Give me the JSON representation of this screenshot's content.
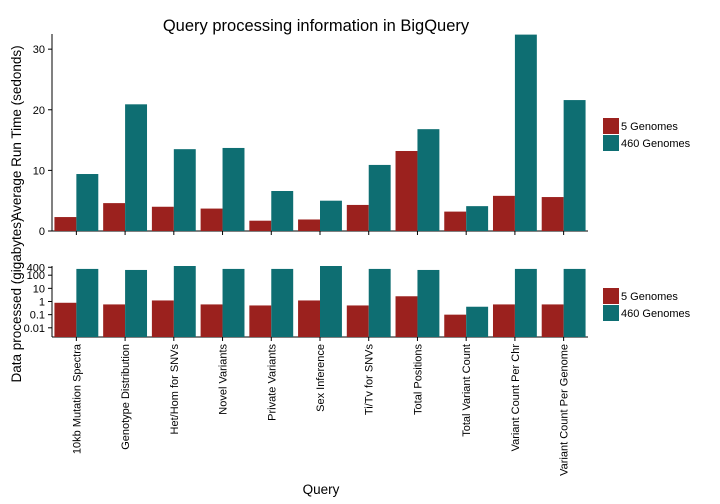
{
  "chart_data": [
    {
      "type": "bar",
      "title": "Query processing information in BigQuery",
      "xlabel": "Query",
      "ylabel": "Average Run Time (sedonds)",
      "ylim": [
        0,
        32.5
      ],
      "yticks": [
        0,
        10,
        20,
        30
      ],
      "scale": "linear",
      "grid": false,
      "legend_position": "right",
      "categories": [
        "10kb Mutation Spectra",
        "Genotype Distribution",
        "Het/Hom for SNVs",
        "Novel Variants",
        "Private Variants",
        "Sex Inference",
        "Ti/Tv for SNVs",
        "Total Positions",
        "Total Variant Count",
        "Variant Count Per Chr",
        "Variant Count Per Genome"
      ],
      "series": [
        {
          "name": "5 Genomes",
          "color": "#9b211e",
          "values": [
            2.3,
            4.6,
            4.0,
            3.7,
            1.7,
            1.9,
            4.3,
            13.2,
            3.2,
            5.8,
            5.6
          ]
        },
        {
          "name": "460 Genomes",
          "color": "#0e6e72",
          "values": [
            9.4,
            20.9,
            13.5,
            13.7,
            6.6,
            5.0,
            10.9,
            16.8,
            4.1,
            32.4,
            21.6
          ]
        }
      ]
    },
    {
      "type": "bar",
      "xlabel": "Query",
      "ylabel": "Data processed (gigabytes)",
      "scale": "log",
      "ylim": [
        0.002,
        500
      ],
      "yticks": [
        0.01,
        0.1,
        1,
        10,
        100,
        400
      ],
      "ytick_labels": [
        "0.01",
        "0.1",
        "1",
        "10",
        "100",
        "400"
      ],
      "grid": false,
      "legend_position": "right",
      "categories": [
        "10kb Mutation Spectra",
        "Genotype Distribution",
        "Het/Hom for SNVs",
        "Novel Variants",
        "Private Variants",
        "Sex Inference",
        "Ti/Tv for SNVs",
        "Total Positions",
        "Total Variant Count",
        "Variant Count Per Chr",
        "Variant Count Per Genome"
      ],
      "series": [
        {
          "name": "5 Genomes",
          "color": "#9b211e",
          "values": [
            0.8,
            0.6,
            1.2,
            0.6,
            0.5,
            1.2,
            0.5,
            2.5,
            0.1,
            0.6,
            0.6
          ]
        },
        {
          "name": "460 Genomes",
          "color": "#0e6e72",
          "values": [
            300,
            250,
            500,
            300,
            300,
            500,
            300,
            250,
            0.4,
            300,
            300
          ]
        }
      ]
    }
  ]
}
